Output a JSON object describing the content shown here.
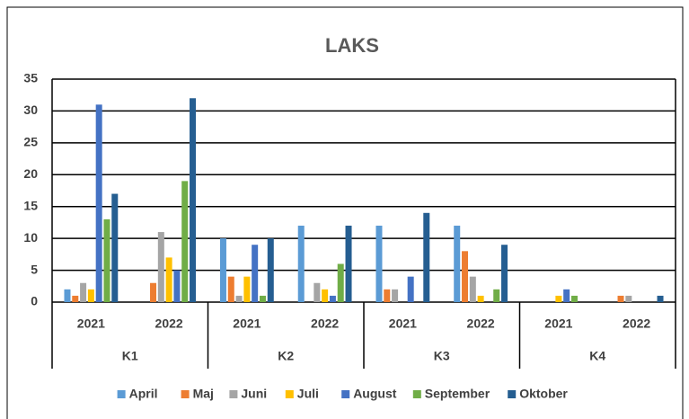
{
  "chart_data": {
    "type": "bar",
    "title": "LAKS",
    "categories": [
      "2021",
      "2022",
      "2021",
      "2022",
      "2021",
      "2022",
      "2021",
      "2022"
    ],
    "groups": [
      "K1",
      "K2",
      "K3",
      "K4"
    ],
    "series": [
      {
        "name": "April",
        "color": "#5b9bd5",
        "values": [
          2,
          0,
          10,
          12,
          12,
          12,
          0,
          0
        ]
      },
      {
        "name": "Maj",
        "color": "#ed7d31",
        "values": [
          1,
          3,
          4,
          0,
          2,
          8,
          0,
          1
        ]
      },
      {
        "name": "Juni",
        "color": "#a5a5a5",
        "values": [
          3,
          11,
          1,
          3,
          2,
          4,
          0,
          1
        ]
      },
      {
        "name": "Juli",
        "color": "#ffc000",
        "values": [
          2,
          7,
          4,
          2,
          0,
          1,
          1,
          0
        ]
      },
      {
        "name": "August",
        "color": "#4472c4",
        "values": [
          31,
          5,
          9,
          1,
          4,
          0,
          2,
          0
        ]
      },
      {
        "name": "September",
        "color": "#70ad47",
        "values": [
          13,
          19,
          1,
          6,
          0,
          2,
          1,
          0
        ]
      },
      {
        "name": "Oktober",
        "color": "#255e91",
        "values": [
          17,
          32,
          10,
          12,
          14,
          9,
          0,
          1
        ]
      }
    ],
    "ylim": [
      0,
      35
    ],
    "yticks": [
      0,
      5,
      10,
      15,
      20,
      25,
      30,
      35
    ],
    "grid": true,
    "legend": "bottom"
  }
}
